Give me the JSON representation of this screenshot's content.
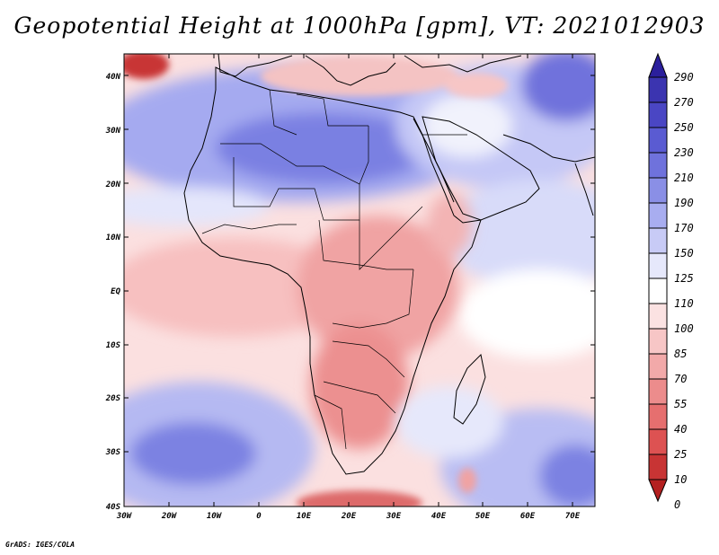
{
  "title": "Geopotential Height at 1000hPa [gpm], VT: 2021012903",
  "credit": "GrADS: IGES/COLA",
  "map": {
    "lat_labels": [
      "40N",
      "30N",
      "20N",
      "10N",
      "EQ",
      "10S",
      "20S",
      "30S",
      "40S"
    ],
    "lon_labels": [
      "30W",
      "20W",
      "10W",
      "0",
      "10E",
      "20E",
      "30E",
      "40E",
      "50E",
      "60E",
      "70E"
    ],
    "lat_range": [
      -40,
      45
    ],
    "lon_range": [
      -30,
      75
    ]
  },
  "colorbar": {
    "levels": [
      "290",
      "270",
      "250",
      "230",
      "210",
      "190",
      "170",
      "150",
      "125",
      "110",
      "100",
      "85",
      "70",
      "55",
      "40",
      "25",
      "10",
      "0"
    ],
    "colors": [
      "#2b1f9c",
      "#3b34b0",
      "#4a46c4",
      "#5a5bd2",
      "#6f72dc",
      "#8a8fe6",
      "#a8adf0",
      "#c8cbf6",
      "#e6e8fb",
      "#ffffff",
      "#fbe2e2",
      "#f7c6c6",
      "#f2a9a9",
      "#ec8c8c",
      "#e66f6f",
      "#dd5252",
      "#c83434",
      "#b42020"
    ]
  }
}
